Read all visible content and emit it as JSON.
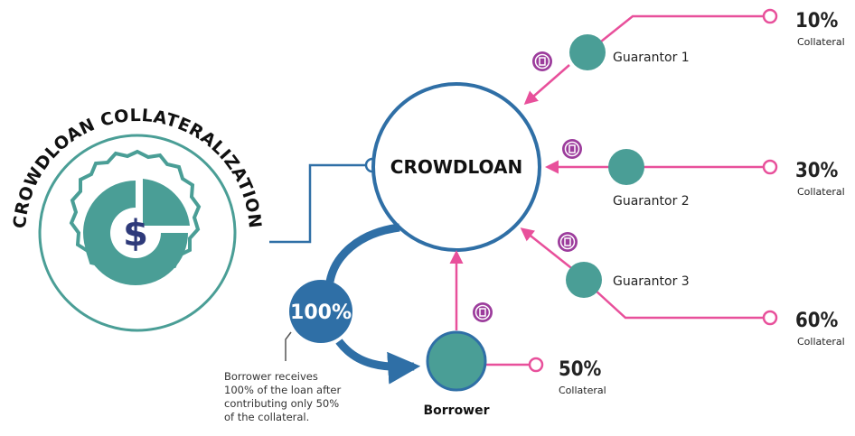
{
  "title": "CROWDLOAN COLLATERALIZATION",
  "logo_symbol": "$",
  "hub": {
    "label": "CROWDLOAN"
  },
  "share": {
    "label": "100%"
  },
  "guarantors": [
    {
      "label": "Guarantor 1",
      "collateral": "10%",
      "collateral_label": "Collateral"
    },
    {
      "label": "Guarantor 2",
      "collateral": "30%",
      "collateral_label": "Collateral"
    },
    {
      "label": "Guarantor 3",
      "collateral": "60%",
      "collateral_label": "Collateral"
    }
  ],
  "borrower": {
    "label": "Borrower",
    "collateral": "50%",
    "collateral_label": "Collateral"
  },
  "note": [
    "Borrower receives",
    "100% of the loan after",
    "contributing only 50%",
    "of the collateral."
  ]
}
